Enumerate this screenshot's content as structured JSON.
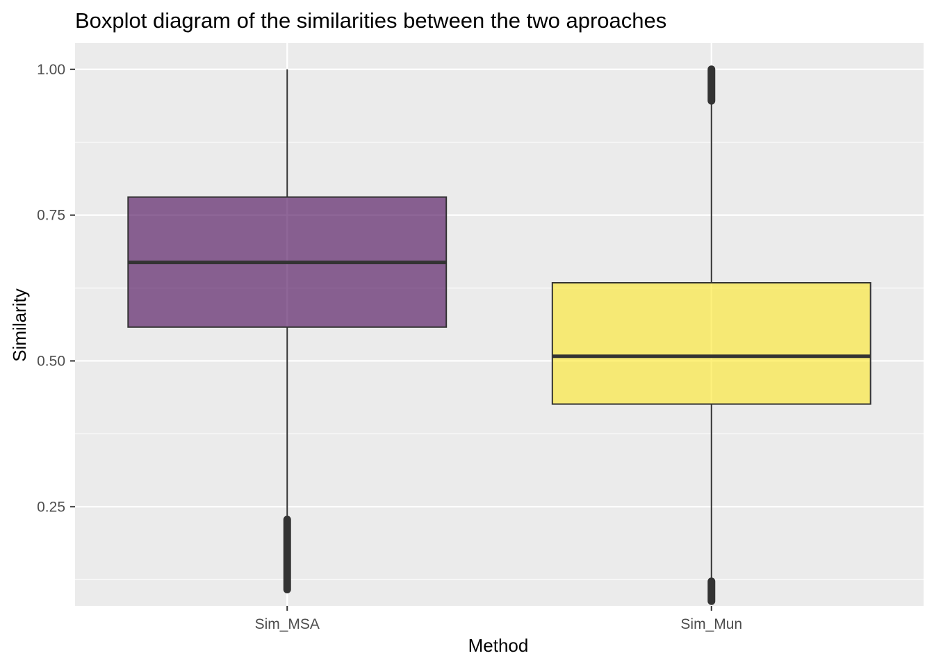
{
  "chart_data": {
    "type": "boxplot",
    "title": "Boxplot diagram of the similarities between the two aproaches",
    "xlabel": "Method",
    "ylabel": "Similarity",
    "ylim": [
      0.08,
      1.045
    ],
    "yticks": [
      0.25,
      0.5,
      0.75,
      1.0
    ],
    "ytick_labels": [
      "0.25",
      "0.50",
      "0.75",
      "1.00"
    ],
    "grid": true,
    "legend": "none",
    "categories": [
      "Sim_MSA",
      "Sim_Mun"
    ],
    "series": [
      {
        "category": "Sim_MSA",
        "whisker_low": 0.228,
        "q1": 0.558,
        "median": 0.669,
        "q3": 0.781,
        "whisker_high": 1.0,
        "outliers_low": [
          0.108,
          0.228
        ],
        "outliers_high": [],
        "color": "#440154",
        "opacity": 0.6
      },
      {
        "category": "Sim_Mun",
        "whisker_low": 0.122,
        "q1": 0.426,
        "median": 0.508,
        "q3": 0.634,
        "whisker_high": 0.946,
        "outliers_low": [
          0.088,
          0.122
        ],
        "outliers_high": [
          0.946,
          1.0
        ],
        "color": "#FDE725",
        "opacity": 0.6
      }
    ],
    "colors": {
      "panel_background": "#EBEBEB",
      "grid_major": "#FFFFFF",
      "box_line": "#333333",
      "tick_label": "#4D4D4D"
    }
  }
}
